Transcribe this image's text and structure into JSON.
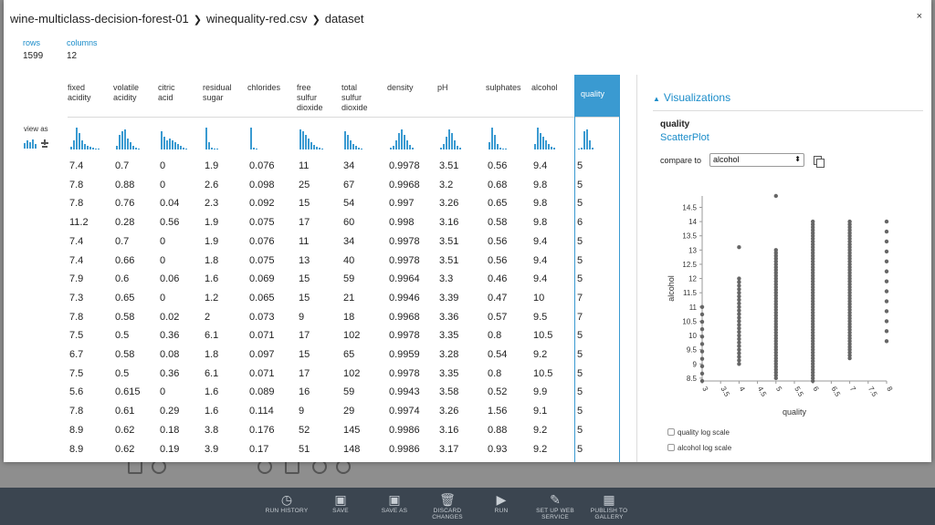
{
  "breadcrumb": [
    "wine-multiclass-decision-forest-01",
    "winequality-red.csv",
    "dataset"
  ],
  "close_label": "×",
  "stats": {
    "rows_label": "rows",
    "rows_value": "1599",
    "columns_label": "columns",
    "columns_value": "12"
  },
  "view_as_label": "view as",
  "columns": [
    {
      "label": [
        "fixed",
        "acidity"
      ],
      "hist": [
        3,
        10,
        24,
        18,
        10,
        6,
        4,
        3,
        2,
        1,
        1
      ]
    },
    {
      "label": [
        "volatile",
        "acidity"
      ],
      "hist": [
        4,
        16,
        20,
        22,
        12,
        8,
        4,
        2,
        1
      ]
    },
    {
      "label": [
        "citric",
        "acid"
      ],
      "hist": [
        20,
        14,
        10,
        12,
        10,
        8,
        6,
        4,
        2,
        1
      ]
    },
    {
      "label": [
        "residual",
        "sugar"
      ],
      "hist": [
        24,
        8,
        2,
        1,
        1
      ]
    },
    {
      "label": [
        "chlorides"
      ],
      "hist": [
        24,
        2,
        1
      ]
    },
    {
      "label": [
        "free",
        "sulfur",
        "dioxide"
      ],
      "hist": [
        22,
        20,
        16,
        12,
        8,
        5,
        3,
        2,
        1
      ]
    },
    {
      "label": [
        "total",
        "sulfur",
        "dioxide"
      ],
      "hist": [
        20,
        16,
        10,
        6,
        4,
        2,
        1
      ]
    },
    {
      "label": [
        "density"
      ],
      "hist": [
        2,
        4,
        10,
        18,
        22,
        16,
        10,
        5,
        2
      ]
    },
    {
      "label": [
        "pH"
      ],
      "hist": [
        2,
        6,
        14,
        22,
        18,
        10,
        4,
        2
      ]
    },
    {
      "label": [
        "sulphates"
      ],
      "hist": [
        8,
        24,
        16,
        6,
        2,
        1,
        1
      ]
    },
    {
      "label": [
        "alcohol"
      ],
      "hist": [
        6,
        24,
        18,
        14,
        10,
        6,
        3,
        2
      ]
    },
    {
      "label": [
        "quality"
      ],
      "hist": [
        1,
        2,
        20,
        22,
        10,
        2
      ]
    }
  ],
  "rows": [
    [
      "7.4",
      "0.7",
      "0",
      "1.9",
      "0.076",
      "11",
      "34",
      "0.9978",
      "3.51",
      "0.56",
      "9.4",
      "5"
    ],
    [
      "7.8",
      "0.88",
      "0",
      "2.6",
      "0.098",
      "25",
      "67",
      "0.9968",
      "3.2",
      "0.68",
      "9.8",
      "5"
    ],
    [
      "7.8",
      "0.76",
      "0.04",
      "2.3",
      "0.092",
      "15",
      "54",
      "0.997",
      "3.26",
      "0.65",
      "9.8",
      "5"
    ],
    [
      "11.2",
      "0.28",
      "0.56",
      "1.9",
      "0.075",
      "17",
      "60",
      "0.998",
      "3.16",
      "0.58",
      "9.8",
      "6"
    ],
    [
      "7.4",
      "0.7",
      "0",
      "1.9",
      "0.076",
      "11",
      "34",
      "0.9978",
      "3.51",
      "0.56",
      "9.4",
      "5"
    ],
    [
      "7.4",
      "0.66",
      "0",
      "1.8",
      "0.075",
      "13",
      "40",
      "0.9978",
      "3.51",
      "0.56",
      "9.4",
      "5"
    ],
    [
      "7.9",
      "0.6",
      "0.06",
      "1.6",
      "0.069",
      "15",
      "59",
      "0.9964",
      "3.3",
      "0.46",
      "9.4",
      "5"
    ],
    [
      "7.3",
      "0.65",
      "0",
      "1.2",
      "0.065",
      "15",
      "21",
      "0.9946",
      "3.39",
      "0.47",
      "10",
      "7"
    ],
    [
      "7.8",
      "0.58",
      "0.02",
      "2",
      "0.073",
      "9",
      "18",
      "0.9968",
      "3.36",
      "0.57",
      "9.5",
      "7"
    ],
    [
      "7.5",
      "0.5",
      "0.36",
      "6.1",
      "0.071",
      "17",
      "102",
      "0.9978",
      "3.35",
      "0.8",
      "10.5",
      "5"
    ],
    [
      "6.7",
      "0.58",
      "0.08",
      "1.8",
      "0.097",
      "15",
      "65",
      "0.9959",
      "3.28",
      "0.54",
      "9.2",
      "5"
    ],
    [
      "7.5",
      "0.5",
      "0.36",
      "6.1",
      "0.071",
      "17",
      "102",
      "0.9978",
      "3.35",
      "0.8",
      "10.5",
      "5"
    ],
    [
      "5.6",
      "0.615",
      "0",
      "1.6",
      "0.089",
      "16",
      "59",
      "0.9943",
      "3.58",
      "0.52",
      "9.9",
      "5"
    ],
    [
      "7.8",
      "0.61",
      "0.29",
      "1.6",
      "0.114",
      "9",
      "29",
      "0.9974",
      "3.26",
      "1.56",
      "9.1",
      "5"
    ],
    [
      "8.9",
      "0.62",
      "0.18",
      "3.8",
      "0.176",
      "52",
      "145",
      "0.9986",
      "3.16",
      "0.88",
      "9.2",
      "5"
    ],
    [
      "8.9",
      "0.62",
      "0.19",
      "3.9",
      "0.17",
      "51",
      "148",
      "0.9986",
      "3.17",
      "0.93",
      "9.2",
      "5"
    ]
  ],
  "visualizations": {
    "title": "Visualizations",
    "column_name": "quality",
    "chart_type_label": "ScatterPlot",
    "compare_label": "compare to",
    "compare_value": "alcohol",
    "checkboxes": [
      "quality log scale",
      "alcohol log scale"
    ]
  },
  "chart_data": {
    "type": "scatter",
    "xlabel": "quality",
    "ylabel": "alcohol",
    "xlim": [
      3,
      8
    ],
    "ylim": [
      8.4,
      14.9
    ],
    "xticks": [
      "3",
      "3.5",
      "4",
      "4.5",
      "5",
      "5.5",
      "6",
      "6.5",
      "7",
      "7.5",
      "8"
    ],
    "yticks": [
      "8.5",
      "9",
      "9.5",
      "10",
      "10.5",
      "11",
      "11.5",
      "12",
      "12.5",
      "13",
      "13.5",
      "14",
      "14.5"
    ],
    "columns": [
      {
        "x": 3,
        "y_range": [
          8.4,
          11
        ],
        "density": 10,
        "extra": []
      },
      {
        "x": 4,
        "y_range": [
          9,
          12
        ],
        "density": 24,
        "extra": [
          13.1
        ]
      },
      {
        "x": 5,
        "y_range": [
          8.5,
          13
        ],
        "density": 45,
        "extra": [
          14.9
        ]
      },
      {
        "x": 6,
        "y_range": [
          8.4,
          14
        ],
        "density": 56,
        "extra": []
      },
      {
        "x": 7,
        "y_range": [
          9.2,
          14
        ],
        "density": 48,
        "extra": []
      },
      {
        "x": 8,
        "y_range": [
          9.8,
          14
        ],
        "density": 12,
        "extra": []
      }
    ]
  },
  "command_bar": [
    "RUN HISTORY",
    "SAVE",
    "SAVE AS",
    "DISCARD CHANGES",
    "RUN",
    "SET UP WEB SERVICE",
    "PUBLISH TO GALLERY"
  ],
  "command_icons": [
    "history-icon",
    "save-icon",
    "save-as-icon",
    "trash-icon",
    "play-icon",
    "wrench-icon",
    "gallery-icon"
  ]
}
